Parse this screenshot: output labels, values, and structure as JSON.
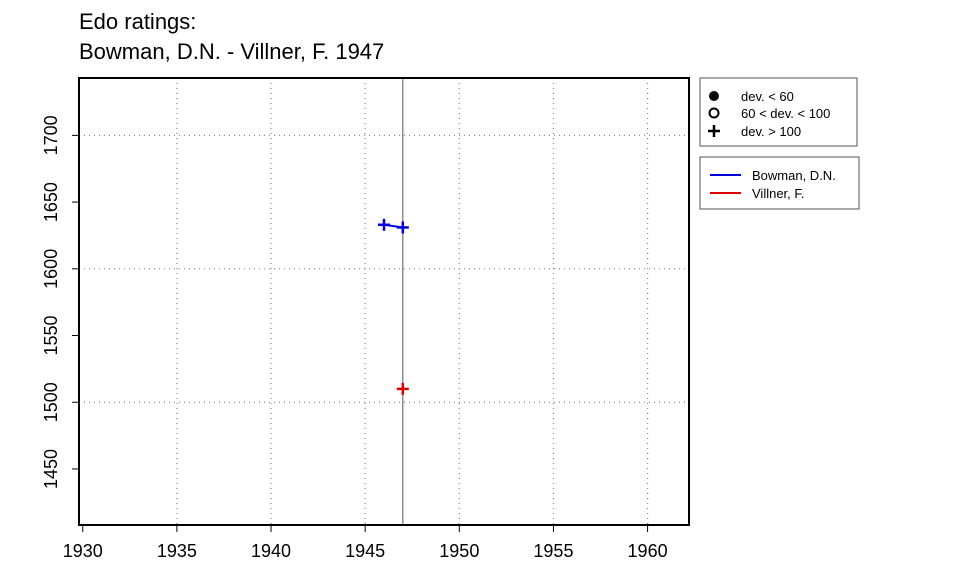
{
  "page": {
    "title_line1": "Edo ratings:",
    "title_line2": "Bowman, D.N. - Villner, F. 1947"
  },
  "chart_data": {
    "type": "scatter",
    "title": "Edo ratings:\nBowman, D.N. - Villner, F. 1947",
    "xlim": [
      1929.8,
      1962.2
    ],
    "ylim": [
      1408,
      1743
    ],
    "x_ticks": [
      1930,
      1935,
      1940,
      1945,
      1950,
      1955,
      1960
    ],
    "y_ticks": [
      1450,
      1500,
      1550,
      1600,
      1650,
      1700
    ],
    "x_grid": [
      1935,
      1940,
      1945,
      1950,
      1955,
      1960
    ],
    "y_grid": [
      1500,
      1600,
      1700
    ],
    "grid": true,
    "vline_x": 1947,
    "series": [
      {
        "name": "Bowman, D.N.",
        "color": "#0000dd",
        "points": [
          {
            "x": 1946,
            "y": 1633,
            "marker": "plus"
          },
          {
            "x": 1947,
            "y": 1631,
            "marker": "plus"
          }
        ]
      },
      {
        "name": "Villner, F.",
        "color": "#dd0000",
        "points": [
          {
            "x": 1947,
            "y": 1510,
            "marker": "plus"
          }
        ]
      }
    ],
    "marker_legend": [
      {
        "symbol": "filled-circle-icon",
        "label": "dev. < 60"
      },
      {
        "symbol": "open-circle-icon",
        "label": "60 < dev. < 100"
      },
      {
        "symbol": "plus-icon",
        "label": "dev. > 100"
      }
    ],
    "series_legend": [
      {
        "label": "Bowman, D.N.",
        "color": "#0000dd"
      },
      {
        "label": "Villner, F.",
        "color": "#dd0000"
      }
    ],
    "legend_position": "right"
  }
}
